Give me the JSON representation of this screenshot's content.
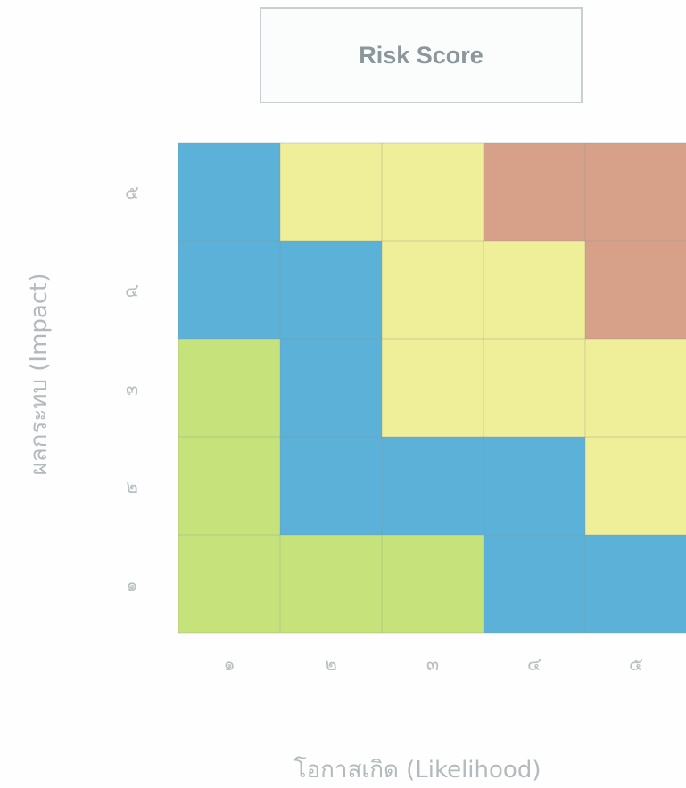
{
  "chart_data": {
    "type": "heatmap",
    "title": "Risk Score",
    "xlabel": "โอกาสเกิด (Likelihood)",
    "ylabel": "ผลกระทบ (Impact)",
    "x_categories": [
      "๑",
      "๒",
      "๓",
      "๔",
      "๕"
    ],
    "y_categories": [
      "๑",
      "๒",
      "๓",
      "๔",
      "๕"
    ],
    "cells": [
      [
        "green",
        "green",
        "green",
        "blue",
        "blue"
      ],
      [
        "green",
        "blue",
        "blue",
        "blue",
        "yellow"
      ],
      [
        "green",
        "blue",
        "yellow",
        "yellow",
        "yellow"
      ],
      [
        "blue",
        "blue",
        "yellow",
        "yellow",
        "red"
      ],
      [
        "blue",
        "yellow",
        "yellow",
        "red",
        "red"
      ]
    ],
    "colors": {
      "green": "#c6e37b",
      "blue": "#5cb1d8",
      "yellow": "#eeef98",
      "red": "#d6a089"
    },
    "grid": true
  }
}
